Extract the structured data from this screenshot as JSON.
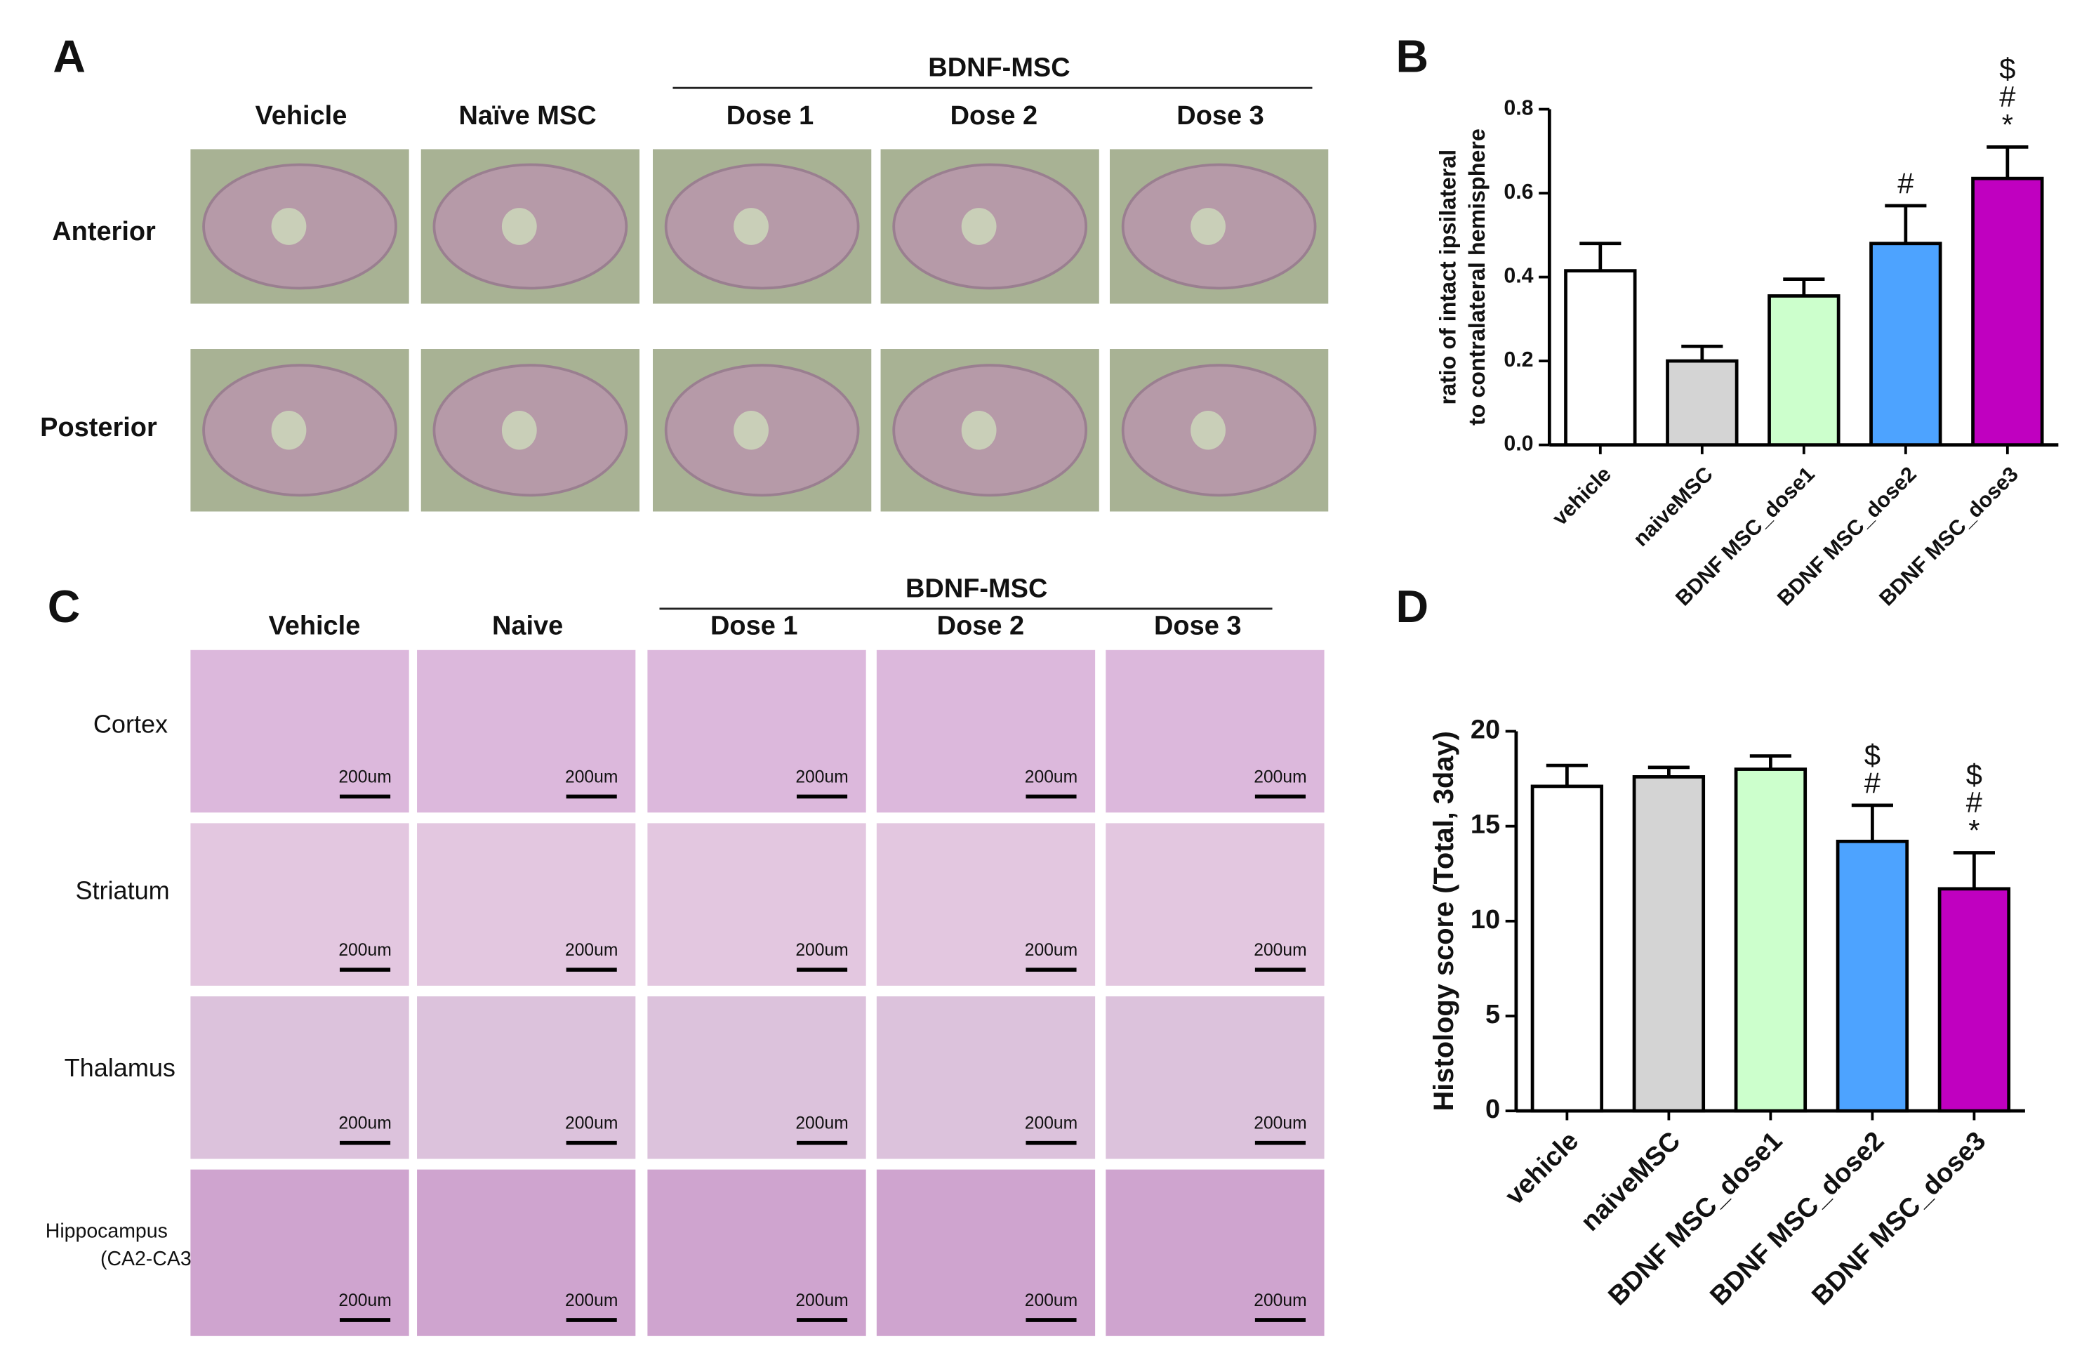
{
  "panel_a": {
    "label": "A",
    "group": "BDNF-MSC",
    "columns": [
      "Vehicle",
      "Naïve MSC",
      "Dose 1",
      "Dose 2",
      "Dose 3"
    ],
    "rows": [
      "Anterior",
      "Posterior"
    ]
  },
  "panel_c": {
    "label": "C",
    "group": "BDNF-MSC",
    "columns": [
      "Vehicle",
      "Naive",
      "Dose 1",
      "Dose 2",
      "Dose 3"
    ],
    "rows": [
      [
        "Cortex"
      ],
      [
        "Striatum"
      ],
      [
        "Thalamus"
      ],
      [
        "Hippocampus",
        "(CA2-CA3)"
      ]
    ],
    "scale_bar": "200um"
  },
  "chart_data": [
    {
      "type": "bar",
      "panel_label": "B",
      "ylabel": [
        "ratio of intact ipsilateral",
        "to contralateral hemisphere"
      ],
      "categories": [
        "vehicle",
        "naiveMSC",
        "BDNF MSC_dose1",
        "BDNF MSC_dose2",
        "BDNF MSC_dose3"
      ],
      "values": [
        0.415,
        0.2,
        0.355,
        0.48,
        0.635
      ],
      "errors": [
        0.065,
        0.035,
        0.04,
        0.09,
        0.075
      ],
      "colors": [
        "#ffffff",
        "#d4d4d4",
        "#ccffcc",
        "#4da3ff",
        "#c000c0"
      ],
      "significance": [
        null,
        null,
        null,
        [
          "#"
        ],
        [
          "$",
          "#",
          "*"
        ]
      ],
      "ylim": [
        0,
        0.8
      ],
      "yticks": [
        {
          "value": 0,
          "label": "0.0"
        },
        0.2,
        0.4,
        0.6,
        0.8
      ]
    },
    {
      "type": "bar",
      "panel_label": "D",
      "ylabel": [
        "Histology score (Total, 3day)"
      ],
      "categories": [
        "vehicle",
        "naiveMSC",
        "BDNF MSC_dose1",
        "BDNF MSC_dose2",
        "BDNF MSC_dose3"
      ],
      "values": [
        17.1,
        17.6,
        18.0,
        14.2,
        11.7
      ],
      "errors": [
        1.1,
        0.5,
        0.7,
        1.9,
        1.9
      ],
      "colors": [
        "#ffffff",
        "#d4d4d4",
        "#ccffcc",
        "#4da3ff",
        "#c000c0"
      ],
      "significance": [
        null,
        null,
        null,
        [
          "$",
          "#"
        ],
        [
          "$",
          "#",
          "*"
        ]
      ],
      "ylim": [
        0,
        20
      ],
      "yticks": [
        0,
        5,
        10,
        15,
        20
      ]
    }
  ]
}
